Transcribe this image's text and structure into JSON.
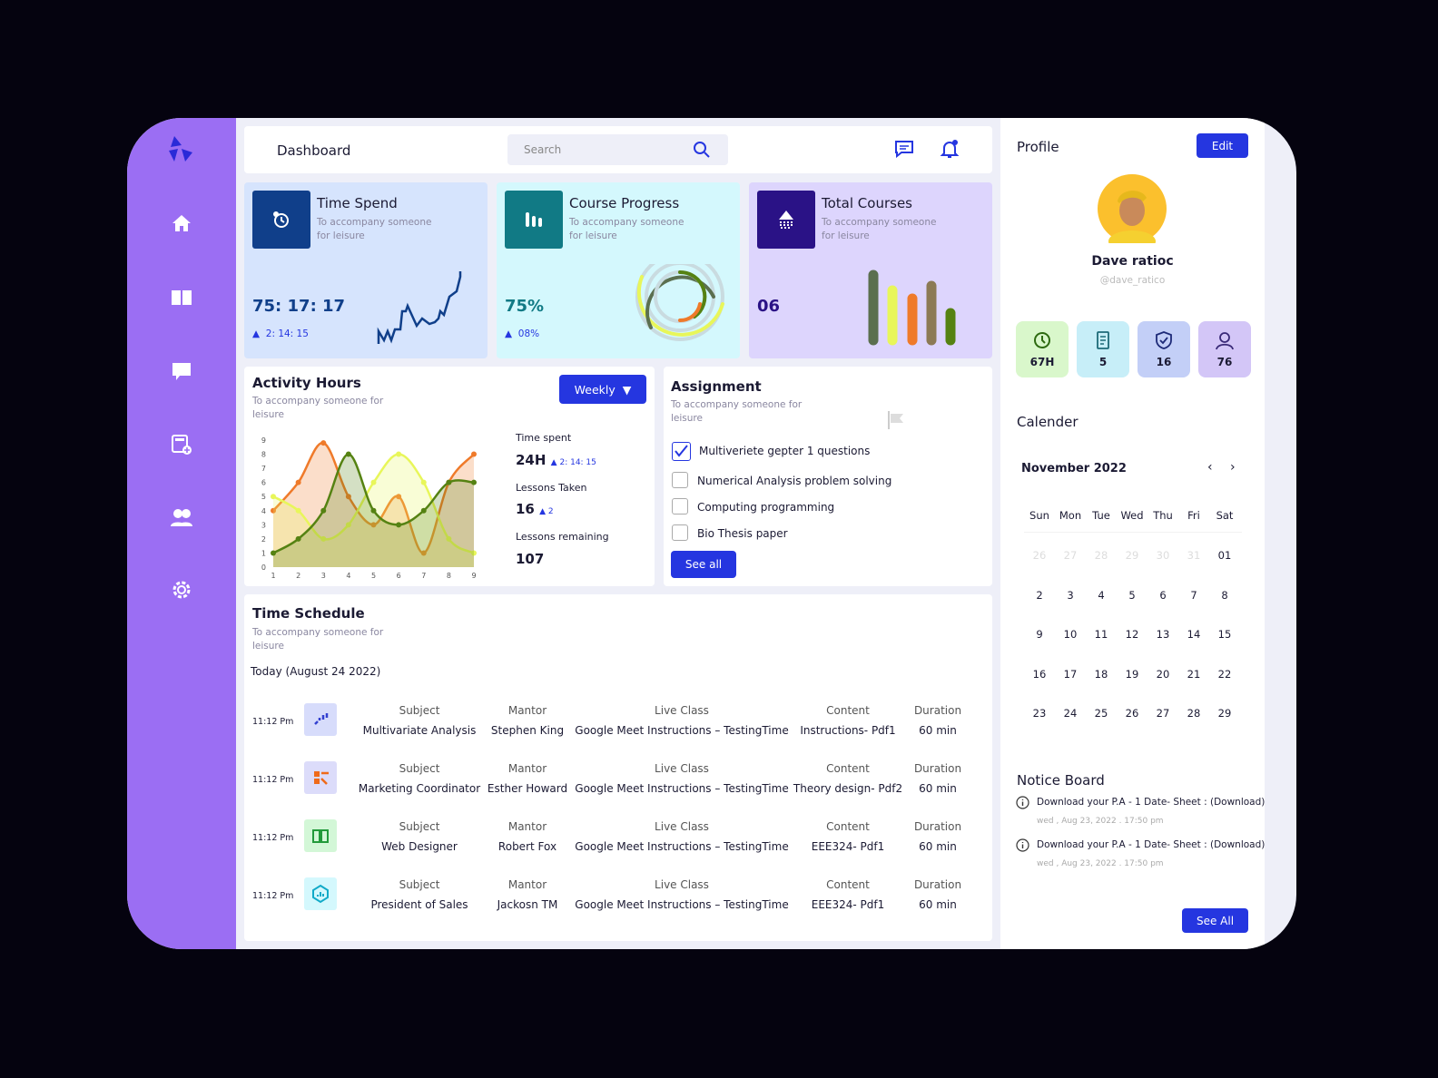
{
  "header": {
    "title": "Dashboard",
    "search_placeholder": "Search"
  },
  "sidebar": {
    "items": [
      {
        "icon": "home-icon"
      },
      {
        "icon": "book-icon"
      },
      {
        "icon": "chat-icon"
      },
      {
        "icon": "calculator-icon"
      },
      {
        "icon": "users-icon"
      },
      {
        "icon": "settings-icon"
      }
    ]
  },
  "cards": [
    {
      "title": "Time Spend",
      "sub1": "To accompany someone",
      "sub2": "for leisure",
      "value": "75: 17: 17",
      "delta": "2: 14: 15",
      "color": "#103f8a",
      "bg": "#d6e4fd"
    },
    {
      "title": "Course Progress",
      "sub1": "To accompany someone",
      "sub2": "for leisure",
      "value": "75%",
      "delta": "08%",
      "color": "#117a85",
      "bg": "#d4f8fd",
      "progress": 75
    },
    {
      "title": "Total Courses",
      "sub1": "To accompany someone",
      "sub2": "for leisure",
      "value": "06",
      "color": "#2a1286",
      "bg": "#ddd5fd"
    }
  ],
  "activity": {
    "title": "Activity Hours",
    "sub1": "To accompany someone for",
    "sub2": "leisure",
    "dropdown": "Weekly",
    "time_label": "Time spent",
    "time_value": "24H",
    "time_delta": "2: 14: 15",
    "lessons_label": "Lessons Taken",
    "lessons_value": "16",
    "lessons_delta": "2",
    "remaining_label": "Lessons remaining",
    "remaining_value": "107"
  },
  "chart_data": {
    "type": "area",
    "x": [
      1,
      2,
      3,
      4,
      5,
      6,
      7,
      8,
      9
    ],
    "yticks": [
      0,
      1,
      2,
      3,
      4,
      5,
      6,
      7,
      8,
      9
    ],
    "ylim": [
      0,
      9
    ],
    "grid": false,
    "series": [
      {
        "color": "#ef7a2a",
        "values": [
          4,
          6,
          8.8,
          5,
          3,
          5,
          1,
          6,
          8
        ]
      },
      {
        "color": "#e8f65a",
        "values": [
          5,
          4,
          2,
          3,
          6,
          8,
          6,
          2,
          1
        ]
      },
      {
        "color": "#558212",
        "values": [
          1,
          2,
          4,
          8,
          4,
          3,
          4,
          6,
          6
        ]
      }
    ]
  },
  "assignment": {
    "title": "Assignment",
    "sub1": "To accompany someone for",
    "sub2": "leisure",
    "see_all": "See all",
    "items": [
      {
        "label": "Multiveriete gepter 1 questions",
        "checked": true
      },
      {
        "label": "Numerical Analysis problem solving",
        "checked": false
      },
      {
        "label": "Computing programming",
        "checked": false
      },
      {
        "label": "Bio Thesis paper",
        "checked": false
      }
    ]
  },
  "schedule": {
    "title": "Time Schedule",
    "sub1": "To accompany someone for",
    "sub2": "leisure",
    "today": "Today (August 24 2022)",
    "headers": {
      "subject": "Subject",
      "mantor": "Mantor",
      "live": "Live Class",
      "content": "Content",
      "duration": "Duration"
    },
    "rows": [
      {
        "time": "11:12 Pm",
        "subject": "Multivariate Analysis",
        "mantor": "Stephen King",
        "live": "Google Meet Instructions – TestingTime",
        "content": "Instructions- Pdf1",
        "duration": "60 min",
        "icon": "chart-icon",
        "bg": "#d7dcfb"
      },
      {
        "time": "11:12 Pm",
        "subject": "Marketing Coordinator",
        "mantor": "Esther Howard",
        "live": "Google Meet Instructions – TestingTime",
        "content": "Theory design- Pdf2",
        "duration": "60 min",
        "icon": "layout-icon",
        "bg": "#dcdcfa"
      },
      {
        "time": "11:12 Pm",
        "subject": "Web Designer",
        "mantor": "Robert Fox",
        "live": "Google Meet Instructions – TestingTime",
        "content": "EEE324- Pdf1",
        "duration": "60 min",
        "icon": "open-book-icon",
        "bg": "#d3f7d7"
      },
      {
        "time": "11:12 Pm",
        "subject": "President of Sales",
        "mantor": "Jackosn TM",
        "live": "Google Meet Instructions – TestingTime",
        "content": "EEE324- Pdf1",
        "duration": "60 min",
        "icon": "hexagon-chart-icon",
        "bg": "#d4f8fd"
      }
    ]
  },
  "profile": {
    "title": "Profile",
    "edit": "Edit",
    "name": "Dave ratioc",
    "handle": "@dave_ratico",
    "stats": [
      {
        "icon": "clock-icon",
        "value": "67H",
        "bg": "#d9f7cb"
      },
      {
        "icon": "document-icon",
        "value": "5",
        "bg": "#c7eef8"
      },
      {
        "icon": "shield-icon",
        "value": "16",
        "bg": "#c3cff7"
      },
      {
        "icon": "user-icon",
        "value": "76",
        "bg": "#d3c6f7"
      }
    ]
  },
  "calendar": {
    "title": "Calender",
    "month": "November 2022",
    "days": [
      "Sun",
      "Mon",
      "Tue",
      "Wed",
      "Thu",
      "Fri",
      "Sat"
    ],
    "weeks": [
      [
        "26",
        "27",
        "28",
        "29",
        "30",
        "31",
        "01"
      ],
      [
        "2",
        "3",
        "4",
        "5",
        "6",
        "7",
        "8"
      ],
      [
        "9",
        "10",
        "11",
        "12",
        "13",
        "14",
        "15"
      ],
      [
        "16",
        "17",
        "18",
        "19",
        "20",
        "21",
        "22"
      ],
      [
        "23",
        "24",
        "25",
        "26",
        "27",
        "28",
        "29"
      ]
    ]
  },
  "notice": {
    "title": "Notice Board",
    "see_all": "See All",
    "items": [
      {
        "text": "Download your P.A - 1 Date- Sheet : (Download)",
        "date": "wed , Aug 23, 2022 . 17:50 pm"
      },
      {
        "text": "Download your P.A - 1 Date- Sheet : (Download)",
        "date": "wed , Aug 23, 2022 . 17:50 pm"
      }
    ]
  }
}
